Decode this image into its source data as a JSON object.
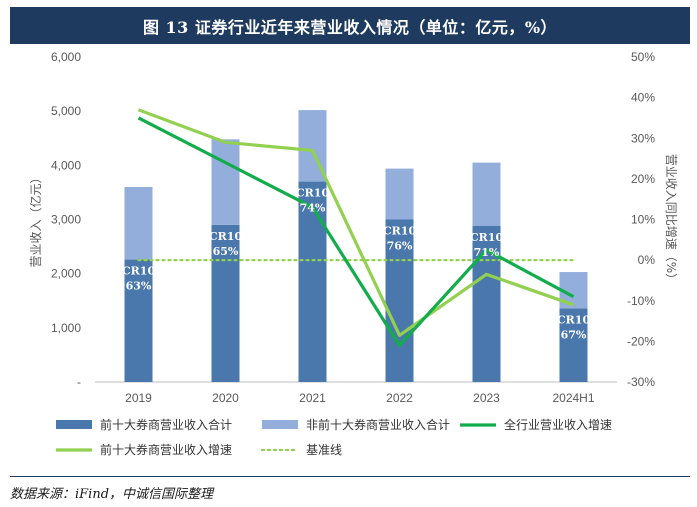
{
  "title": "图 13  证券行业近年来营业收入情况（单位：亿元，%）",
  "source": "数据来源：iFind，中诚信国际整理",
  "chart_data": {
    "type": "bar",
    "categories": [
      "2019",
      "2020",
      "2021",
      "2022",
      "2023",
      "2024H1"
    ],
    "y_left": {
      "label": "营业收入（亿元）",
      "ylim": [
        0,
        6000
      ],
      "ticks": [
        0,
        1000,
        2000,
        3000,
        4000,
        5000,
        6000
      ],
      "tick_labels": [
        "-",
        "1,000",
        "2,000",
        "3,000",
        "4,000",
        "5,000",
        "6,000"
      ]
    },
    "y_right": {
      "label": "营业收入同比增速（%）",
      "ylim": [
        -30,
        50
      ],
      "ticks": [
        -30,
        -20,
        -10,
        0,
        10,
        20,
        30,
        40,
        50
      ],
      "tick_labels": [
        "-30%",
        "-20%",
        "-10%",
        "0%",
        "10%",
        "20%",
        "30%",
        "40%",
        "50%"
      ]
    },
    "series": [
      {
        "name": "前十大券商营业收入合计",
        "kind": "bar",
        "axis": "left",
        "color": "#4a77ac",
        "values": [
          2260,
          2900,
          3700,
          3000,
          2880,
          1360
        ]
      },
      {
        "name": "非前十大券商营业收入合计",
        "kind": "bar",
        "axis": "left",
        "color": "#93aedb",
        "values": [
          1340,
          1580,
          1320,
          940,
          1170,
          670
        ]
      },
      {
        "name": "全行业营业收入增速",
        "kind": "line",
        "axis": "right",
        "color": "#12ad4b",
        "values": [
          35,
          24,
          13,
          -21,
          2.5,
          -9
        ]
      },
      {
        "name": "前十大券商营业收入增速",
        "kind": "line",
        "axis": "right",
        "color": "#92d050",
        "values": [
          37,
          29,
          27,
          -18.5,
          -3.5,
          -11
        ]
      },
      {
        "name": "基准线",
        "kind": "dotted",
        "axis": "right",
        "color": "#92d050",
        "values": [
          0,
          0,
          0,
          0,
          0,
          0
        ]
      }
    ],
    "bar_labels": [
      {
        "line1": "CR10",
        "line2": "63%"
      },
      {
        "line1": "CR10",
        "line2": "65%"
      },
      {
        "line1": "CR10",
        "line2": "74%"
      },
      {
        "line1": "CR10",
        "line2": "76%"
      },
      {
        "line1": "CR10",
        "line2": "71%"
      },
      {
        "line1": "CR10",
        "line2": "67%"
      }
    ],
    "grid": false,
    "legend": "bottom"
  }
}
